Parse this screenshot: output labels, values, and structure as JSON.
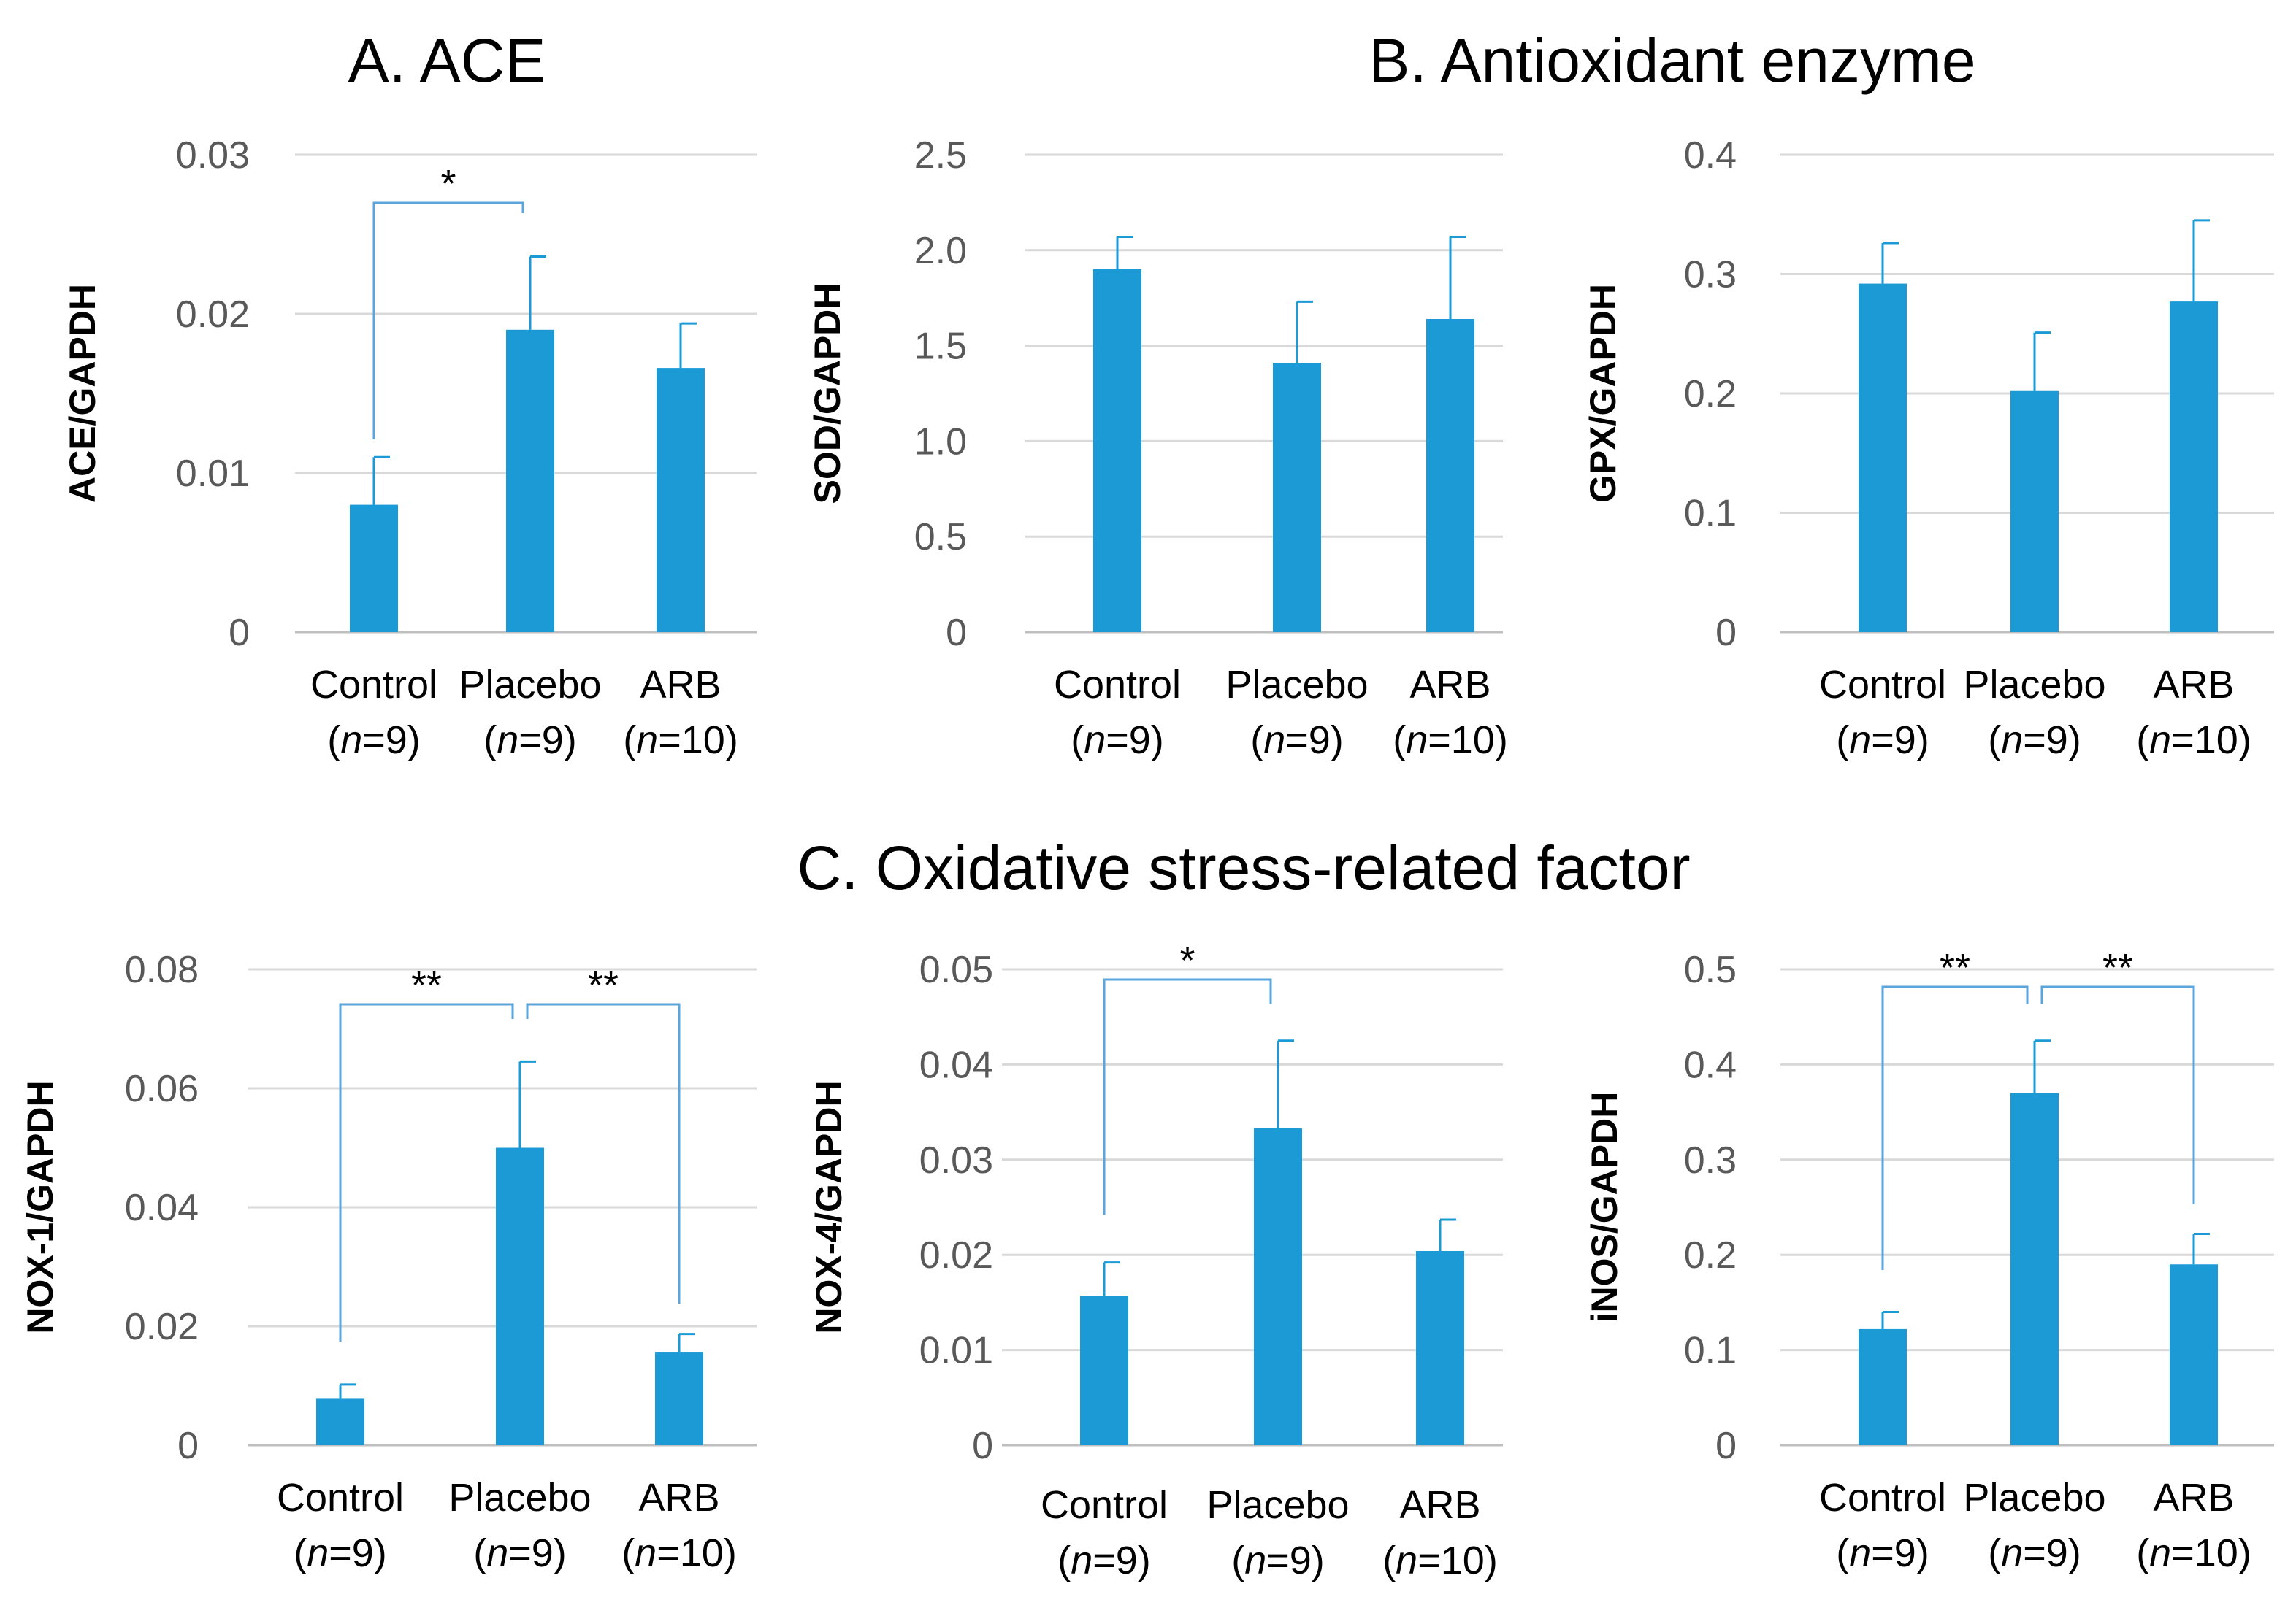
{
  "sections": {
    "a": "A. ACE",
    "b": "B. Antioxidant enzyme",
    "c": "C. Oxidative stress-related factor"
  },
  "groups": [
    {
      "name": "Control",
      "n": "9"
    },
    {
      "name": "Placebo",
      "n": "9"
    },
    {
      "name": "ARB",
      "n": "10"
    }
  ],
  "colors": {
    "bar": "#1b9ad6",
    "bracket": "#5aa6dc"
  },
  "chart_data": [
    {
      "type": "bar",
      "panel": "A",
      "ylabel": "ACE/GAPDH",
      "categories": [
        "Control",
        "Placebo",
        "ARB"
      ],
      "values": [
        0.008,
        0.019,
        0.0166
      ],
      "errors": [
        0.003,
        0.0046,
        0.0028
      ],
      "ylim": [
        0,
        0.03
      ],
      "yticks": [
        0,
        0.01,
        0.02,
        0.03
      ],
      "ytick_labels": [
        "0",
        "0.01",
        "0.02",
        "0.03"
      ],
      "significance": [
        {
          "from": 0,
          "to": 1,
          "label": "*"
        }
      ]
    },
    {
      "type": "bar",
      "panel": "B1",
      "ylabel": "SOD/GAPDH",
      "categories": [
        "Control",
        "Placebo",
        "ARB"
      ],
      "values": [
        1.9,
        1.41,
        1.64
      ],
      "errors": [
        0.17,
        0.32,
        0.43
      ],
      "ylim": [
        0,
        2.5
      ],
      "yticks": [
        0,
        0.5,
        1.0,
        1.5,
        2.0,
        2.5
      ],
      "ytick_labels": [
        "0",
        "0.5",
        "1.0",
        "1.5",
        "2.0",
        "2.5"
      ],
      "significance": []
    },
    {
      "type": "bar",
      "panel": "B2",
      "ylabel": "GPX/GAPDH",
      "categories": [
        "Control",
        "Placebo",
        "ARB"
      ],
      "values": [
        0.292,
        0.202,
        0.277
      ],
      "errors": [
        0.034,
        0.049,
        0.068
      ],
      "ylim": [
        0,
        0.4
      ],
      "yticks": [
        0,
        0.1,
        0.2,
        0.3,
        0.4
      ],
      "ytick_labels": [
        "0",
        "0.1",
        "0.2",
        "0.3",
        "0.4"
      ],
      "significance": []
    },
    {
      "type": "bar",
      "panel": "C1",
      "ylabel": "NOX-1/GAPDH",
      "categories": [
        "Control",
        "Placebo",
        "ARB"
      ],
      "values": [
        0.0078,
        0.05,
        0.0157
      ],
      "errors": [
        0.0024,
        0.0145,
        0.003
      ],
      "ylim": [
        0,
        0.08
      ],
      "yticks": [
        0,
        0.02,
        0.04,
        0.06,
        0.08
      ],
      "ytick_labels": [
        "0",
        "0.02",
        "0.04",
        "0.06",
        "0.08"
      ],
      "significance": [
        {
          "from": 0,
          "to": 1,
          "label": "**"
        },
        {
          "from": 1,
          "to": 2,
          "label": "**"
        }
      ]
    },
    {
      "type": "bar",
      "panel": "C2",
      "ylabel": "NOX-4/GAPDH",
      "categories": [
        "Control",
        "Placebo",
        "ARB"
      ],
      "values": [
        0.0157,
        0.0333,
        0.0204
      ],
      "errors": [
        0.0035,
        0.0092,
        0.0033
      ],
      "ylim": [
        0,
        0.05
      ],
      "yticks": [
        0,
        0.01,
        0.02,
        0.03,
        0.04,
        0.05
      ],
      "ytick_labels": [
        "0",
        "0.01",
        "0.02",
        "0.03",
        "0.04",
        "0.05"
      ],
      "significance": [
        {
          "from": 0,
          "to": 1,
          "label": "*"
        }
      ]
    },
    {
      "type": "bar",
      "panel": "C3",
      "ylabel": "iNOS/GAPDH",
      "categories": [
        "Control",
        "Placebo",
        "ARB"
      ],
      "values": [
        0.122,
        0.37,
        0.19
      ],
      "errors": [
        0.018,
        0.055,
        0.032
      ],
      "ylim": [
        0,
        0.5
      ],
      "yticks": [
        0,
        0.1,
        0.2,
        0.3,
        0.4,
        0.5
      ],
      "ytick_labels": [
        "0",
        "0.1",
        "0.2",
        "0.3",
        "0.4",
        "0.5"
      ],
      "significance": [
        {
          "from": 0,
          "to": 1,
          "label": "**"
        },
        {
          "from": 1,
          "to": 2,
          "label": "**"
        }
      ]
    }
  ]
}
